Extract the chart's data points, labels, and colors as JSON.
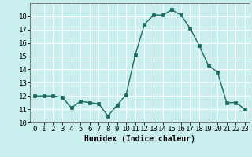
{
  "x": [
    0,
    1,
    2,
    3,
    4,
    5,
    6,
    7,
    8,
    9,
    10,
    11,
    12,
    13,
    14,
    15,
    16,
    17,
    18,
    19,
    20,
    21,
    22,
    23
  ],
  "y": [
    12,
    12,
    12,
    11.9,
    11.1,
    11.6,
    11.5,
    11.4,
    10.5,
    11.3,
    12.1,
    15.1,
    17.4,
    18.1,
    18.1,
    18.5,
    18.1,
    17.1,
    15.8,
    14.3,
    13.8,
    11.5,
    11.5,
    11.0
  ],
  "line_color": "#1a6b5f",
  "marker": "s",
  "marker_size": 2.2,
  "bg_color": "#c8eeee",
  "grid_color": "#ffffff",
  "xlabel": "Humidex (Indice chaleur)",
  "ylim": [
    10,
    19
  ],
  "xlim": [
    -0.5,
    23.5
  ],
  "yticks": [
    10,
    11,
    12,
    13,
    14,
    15,
    16,
    17,
    18
  ],
  "xticks": [
    0,
    1,
    2,
    3,
    4,
    5,
    6,
    7,
    8,
    9,
    10,
    11,
    12,
    13,
    14,
    15,
    16,
    17,
    18,
    19,
    20,
    21,
    22,
    23
  ],
  "xlabel_fontsize": 7,
  "tick_fontsize": 6.5,
  "line_width": 1.0
}
